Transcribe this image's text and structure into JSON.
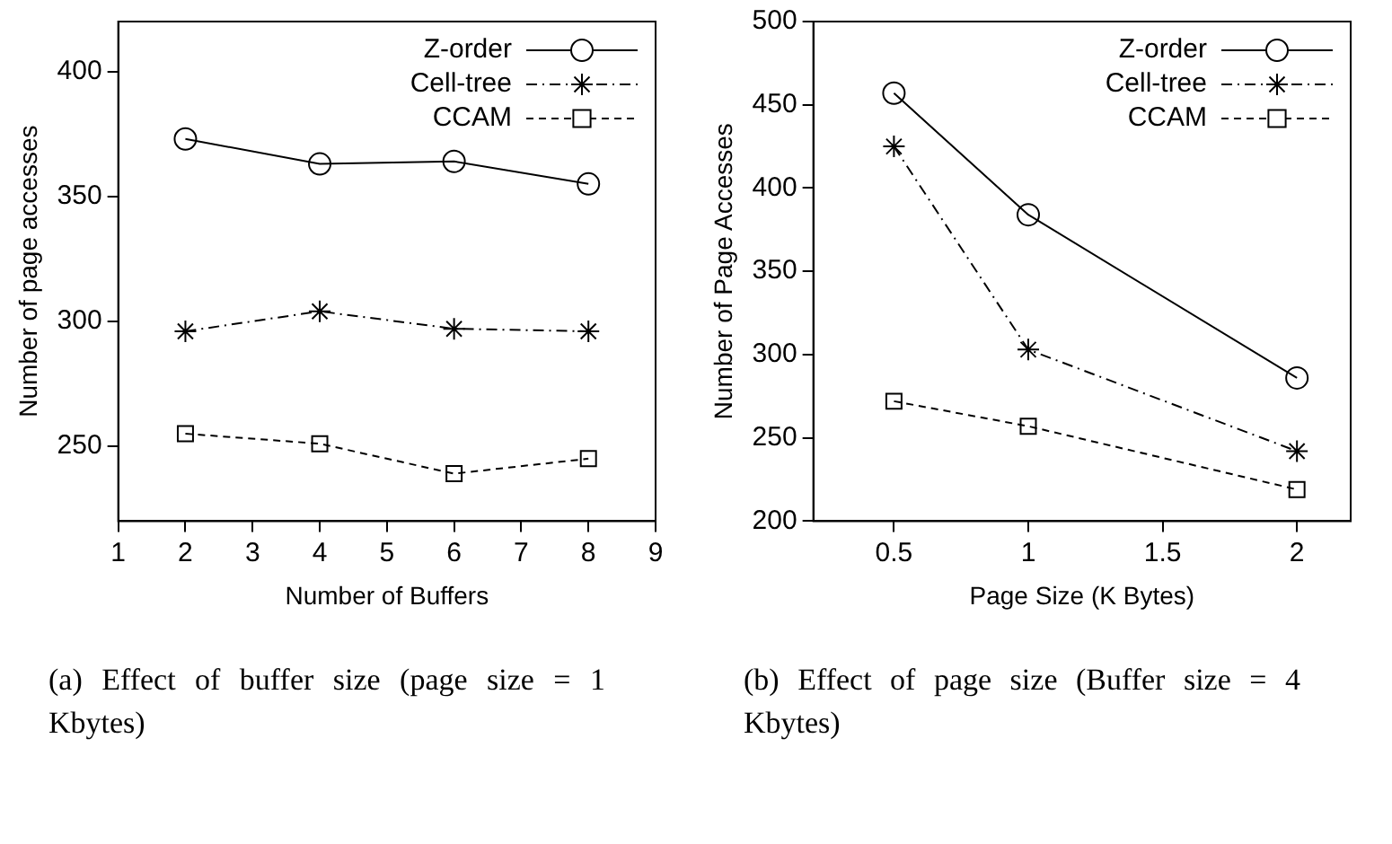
{
  "chart_data": [
    {
      "type": "line",
      "xlabel": "Number of Buffers",
      "ylabel": "Number of page accesses",
      "xlim": [
        1,
        9
      ],
      "xticks": [
        1,
        2,
        3,
        4,
        5,
        6,
        7,
        8,
        9
      ],
      "ylim": [
        220,
        420
      ],
      "yticks": [
        250,
        300,
        350,
        400
      ],
      "grid": false,
      "legend": "top right",
      "annotations": [
        "(a) Effect of buffer size (page size = 1 Kbytes)"
      ],
      "x": [
        2,
        4,
        6,
        8
      ],
      "series": [
        {
          "name": "Z-order",
          "color": "#000000",
          "marker": "circle",
          "line_style": "solid",
          "values": [
            373,
            363,
            364,
            355
          ]
        },
        {
          "name": "Cell-tree",
          "color": "#000000",
          "marker": "cross",
          "line_style": "dotted",
          "values": [
            296,
            304,
            297,
            296
          ]
        },
        {
          "name": "CCAM",
          "color": "#000000",
          "marker": "square",
          "line_style": "dashed",
          "values": [
            255,
            251,
            239,
            245
          ]
        }
      ]
    },
    {
      "type": "line",
      "xlabel": "Page Size (K Bytes)",
      "ylabel": "Number of Page Accesses",
      "xlim": [
        0.2,
        2.2
      ],
      "xticks": [
        0.5,
        1,
        1.5,
        2
      ],
      "ylim": [
        200,
        500
      ],
      "yticks": [
        200,
        250,
        300,
        350,
        400,
        450,
        500
      ],
      "grid": false,
      "legend": "top right",
      "annotations": [
        "(b) Effect of page size (Buffer size = 4 Kbytes)"
      ],
      "x": [
        0.5,
        1,
        2
      ],
      "series": [
        {
          "name": "Z-order",
          "color": "#000000",
          "marker": "circle",
          "line_style": "solid",
          "values": [
            457,
            384,
            286
          ]
        },
        {
          "name": "Cell-tree",
          "color": "#000000",
          "marker": "cross",
          "line_style": "dotted",
          "values": [
            425,
            303,
            242
          ]
        },
        {
          "name": "CCAM",
          "color": "#000000",
          "marker": "square",
          "line_style": "dashed",
          "values": [
            272,
            257,
            219
          ]
        }
      ]
    }
  ]
}
